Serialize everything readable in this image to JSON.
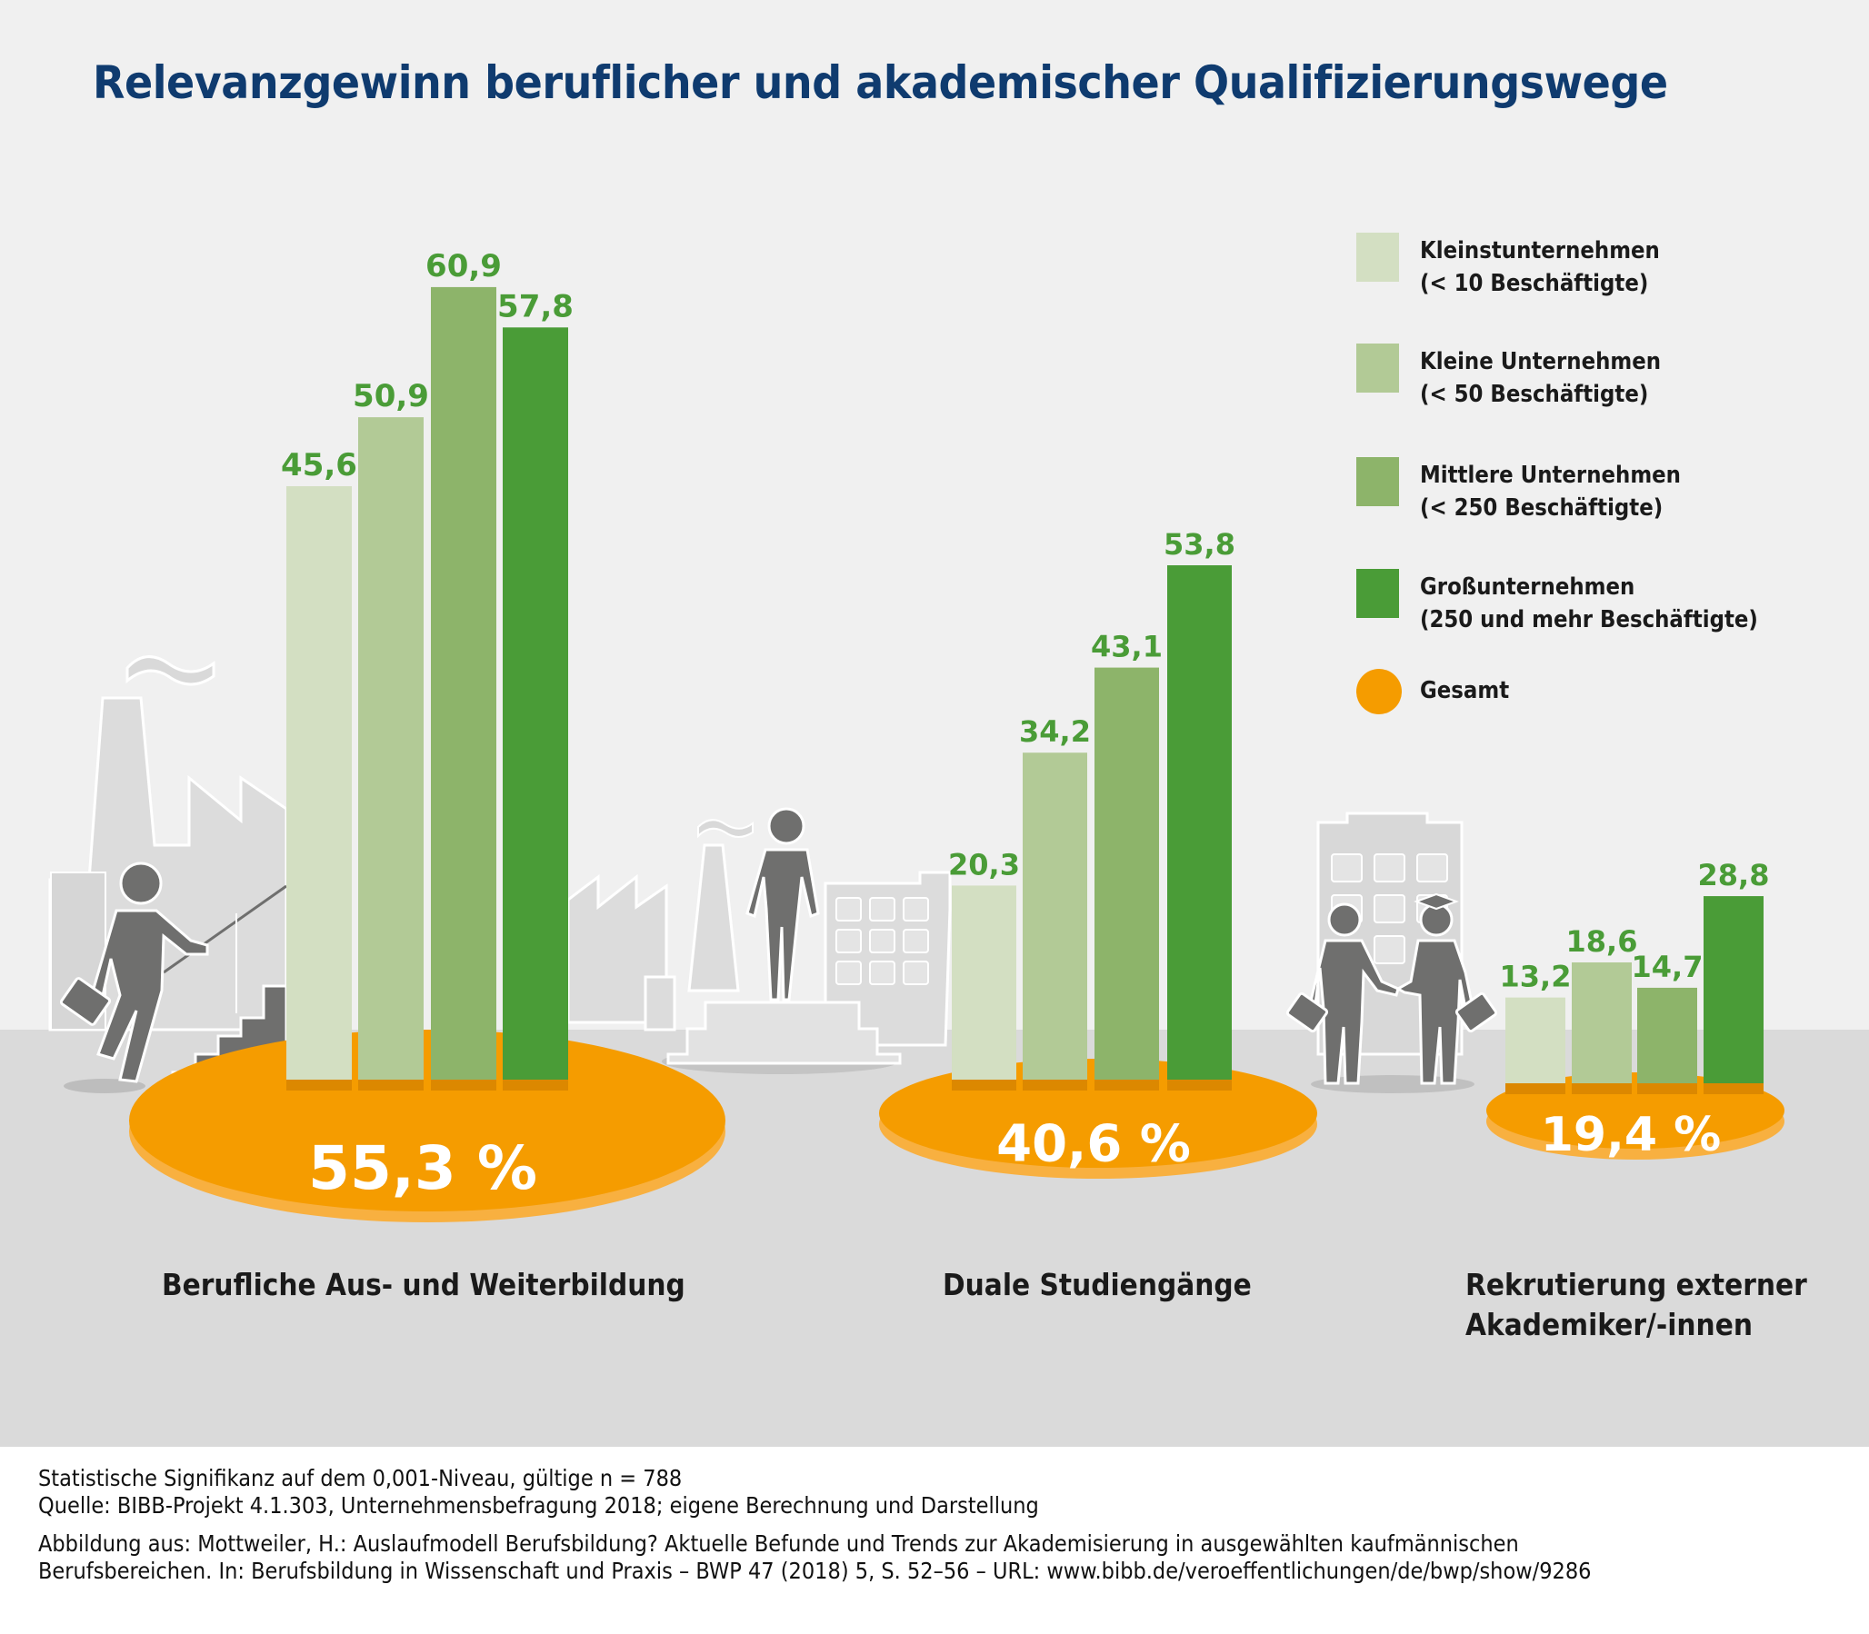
{
  "title": "Relevanzgewinn beruflicher und akademischer Qualifizierungswege",
  "chart_data": {
    "type": "bar",
    "title": "Relevanzgewinn beruflicher und akademischer Qualifizierungswege",
    "unit": "%",
    "categories": [
      "Berufliche Aus- und Weiterbildung",
      "Duale Studiengänge",
      "Rekrutierung externer Akademiker/-innen"
    ],
    "series": [
      {
        "name": "Kleinstunternehmen (< 10 Beschäftigte)",
        "color": "#d3dfc2",
        "values": [
          45.6,
          20.3,
          13.2
        ],
        "labels": [
          "45,6",
          "20,3",
          "13,2"
        ]
      },
      {
        "name": "Kleine Unternehmen (< 50 Beschäftigte)",
        "color": "#b2ca96",
        "values": [
          50.9,
          34.2,
          18.6
        ],
        "labels": [
          "50,9",
          "34,2",
          "18,6"
        ]
      },
      {
        "name": "Mittlere Unternehmen (< 250 Beschäftigte)",
        "color": "#8db46a",
        "values": [
          60.9,
          43.1,
          14.7
        ],
        "labels": [
          "60,9",
          "43,1",
          "14,7"
        ]
      },
      {
        "name": "Großunternehmen (250 und mehr Beschäftigte)",
        "color": "#4a9c37",
        "values": [
          57.8,
          53.8,
          28.8
        ],
        "labels": [
          "57,8",
          "53,8",
          "28,8"
        ]
      }
    ],
    "totals": {
      "name": "Gesamt",
      "color": "#f59c00",
      "values": [
        55.3,
        40.6,
        19.4
      ],
      "labels": [
        "55,3 %",
        "40,6 %",
        "19,4 %"
      ]
    },
    "value_label_color": "#4a9c37",
    "grid": false,
    "legend_position": "top-right",
    "xlabel": "",
    "ylabel": ""
  },
  "legend": {
    "items": [
      {
        "line1": "Kleinstunternehmen",
        "line2": "(< 10 Beschäftigte)",
        "color": "#d3dfc2"
      },
      {
        "line1": "Kleine Unternehmen",
        "line2": "(< 50 Beschäftigte)",
        "color": "#b2ca96"
      },
      {
        "line1": "Mittlere Unternehmen",
        "line2": "(< 250 Beschäftigte)",
        "color": "#8db46a"
      },
      {
        "line1": "Großunternehmen",
        "line2": "(250 und mehr Beschäftigte)",
        "color": "#4a9c37"
      },
      {
        "line1": "Gesamt",
        "line2": "",
        "color": "#f59c00"
      }
    ]
  },
  "categories": {
    "c1": {
      "line1": "Berufliche Aus- und Weiterbildung",
      "line2": ""
    },
    "c2": {
      "line1": "Duale Studiengänge",
      "line2": ""
    },
    "c3": {
      "line1": "Rekrutierung externer",
      "line2": "Akademiker/-innen"
    }
  },
  "footer": {
    "line1": "Statistische Signifikanz auf dem 0,001-Niveau, gültige n = 788",
    "line2": "Quelle: BIBB-Projekt 4.1.303, Unternehmensbefragung 2018; eigene Berechnung und Darstellung",
    "line3": "Abbildung aus: Mottweiler, H.: Auslaufmodell Berufsbildung? Aktuelle Befunde und Trends zur Akademisierung in ausgewählten kaufmännischen",
    "line4": "Berufsbereichen. In: Berufsbildung in Wissenschaft und Praxis – BWP 47 (2018) 5, S. 52–56 – URL: www.bibb.de/veroeffentlichungen/de/bwp/show/9286"
  },
  "colors": {
    "background_top": "#f0f0f0",
    "ground": "#dadada",
    "footer_bg": "#ffffff",
    "title": "#0f3b6f",
    "illustration_dark": "#6f6f6e",
    "illustration_light": "#d9d9d9",
    "platform": "#f59c00",
    "platform_rim": "#f8b040",
    "bar_shadow": "#dc8800"
  }
}
